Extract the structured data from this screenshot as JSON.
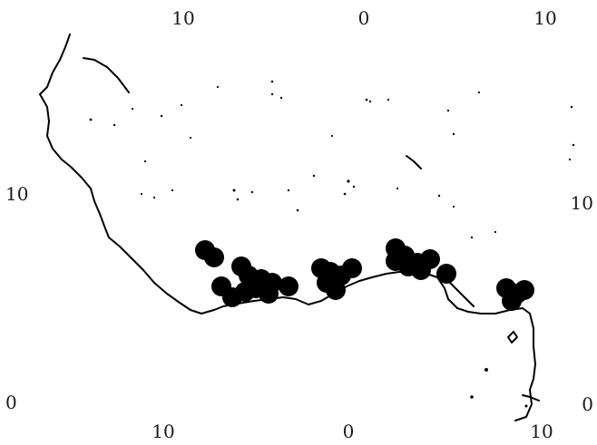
{
  "map": {
    "coastline_color": "#000000",
    "marker_color": "#000000",
    "background_color": "#ffffff",
    "markers_count_visible": 30
  },
  "top_labels": [
    "10",
    "0",
    "10"
  ],
  "bottom_labels": [
    "10",
    "0",
    "10"
  ],
  "left_labels": [
    "10",
    "0"
  ],
  "right_labels": [
    "10",
    "0"
  ]
}
